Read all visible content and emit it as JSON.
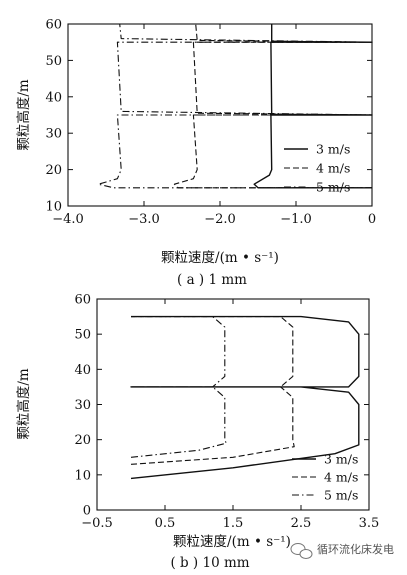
{
  "watermark": "循环流化床发电",
  "chart_data": [
    {
      "type": "line",
      "caption": "( a ) 1 mm",
      "xlabel": "颗粒速度/(m • s⁻¹)",
      "ylabel": "颗粒高度/m",
      "xlim": [
        -4.0,
        0
      ],
      "ylim": [
        10,
        60
      ],
      "xticks": [
        "−4.0",
        "−3.0",
        "−2.0",
        "−1.0",
        "0"
      ],
      "yticks": [
        "10",
        "20",
        "30",
        "40",
        "50",
        "60"
      ],
      "legend_position": "right",
      "series": [
        {
          "name": "3 m/s",
          "style": "solid",
          "x": [
            0,
            -1.5,
            -1.55,
            -1.35,
            -1.32,
            -1.33,
            0,
            -1.32,
            -1.33,
            0,
            -1.32,
            -1.32
          ],
          "y": [
            15,
            15,
            16,
            18.5,
            20,
            35,
            35,
            35.2,
            55,
            55,
            55.2,
            60
          ]
        },
        {
          "name": "4 m/s",
          "style": "dashed",
          "x": [
            0,
            -2.55,
            -2.6,
            -2.35,
            -2.3,
            -2.35,
            0,
            -2.3,
            -2.35,
            0,
            -2.3,
            -2.32
          ],
          "y": [
            15,
            15,
            16,
            17.5,
            20,
            35,
            35,
            35.5,
            55,
            55,
            55.5,
            60
          ]
        },
        {
          "name": "5 m/s",
          "style": "dashdot",
          "x": [
            0,
            -3.4,
            -3.6,
            -3.35,
            -3.3,
            -3.35,
            0,
            -3.3,
            -3.35,
            0,
            -3.3,
            -3.32
          ],
          "y": [
            15,
            15,
            16,
            17.5,
            20,
            35,
            35,
            36,
            55,
            55,
            56,
            60
          ]
        }
      ]
    },
    {
      "type": "line",
      "caption": "( b ) 10 mm",
      "xlabel": "颗粒速度/(m • s⁻¹)",
      "ylabel": "颗粒高度/m",
      "xlim": [
        -0.5,
        3.5
      ],
      "ylim": [
        0,
        60
      ],
      "xticks": [
        "−0.5",
        "0.5",
        "1.5",
        "2.5",
        "3.5"
      ],
      "yticks": [
        "0",
        "10",
        "20",
        "30",
        "40",
        "50",
        "60"
      ],
      "legend_position": "bottom-right",
      "series": [
        {
          "name": "3 m/s",
          "style": "solid",
          "x": [
            0,
            1.5,
            3.0,
            3.35,
            3.35,
            3.2,
            2.5,
            0,
            3.2,
            3.35,
            3.35,
            3.2,
            2.5,
            0
          ],
          "y": [
            9,
            12,
            16,
            18.5,
            30,
            33.5,
            35,
            35,
            35,
            38,
            50,
            53.5,
            55,
            55
          ]
        },
        {
          "name": "4 m/s",
          "style": "dashed",
          "x": [
            0,
            1.5,
            2.4,
            2.38,
            2.38,
            2.2,
            0,
            2.2,
            2.38,
            2.38,
            2.2,
            0
          ],
          "y": [
            13,
            15,
            18,
            20,
            32,
            35,
            35,
            35,
            38,
            52,
            55,
            55
          ]
        },
        {
          "name": "5 m/s",
          "style": "dashdot",
          "x": [
            0,
            1.0,
            1.4,
            1.38,
            1.38,
            1.2,
            0,
            1.2,
            1.38,
            1.38,
            1.2,
            0
          ],
          "y": [
            15,
            17,
            19,
            20,
            32,
            35,
            35,
            35,
            38,
            52,
            55,
            55
          ]
        }
      ]
    }
  ]
}
